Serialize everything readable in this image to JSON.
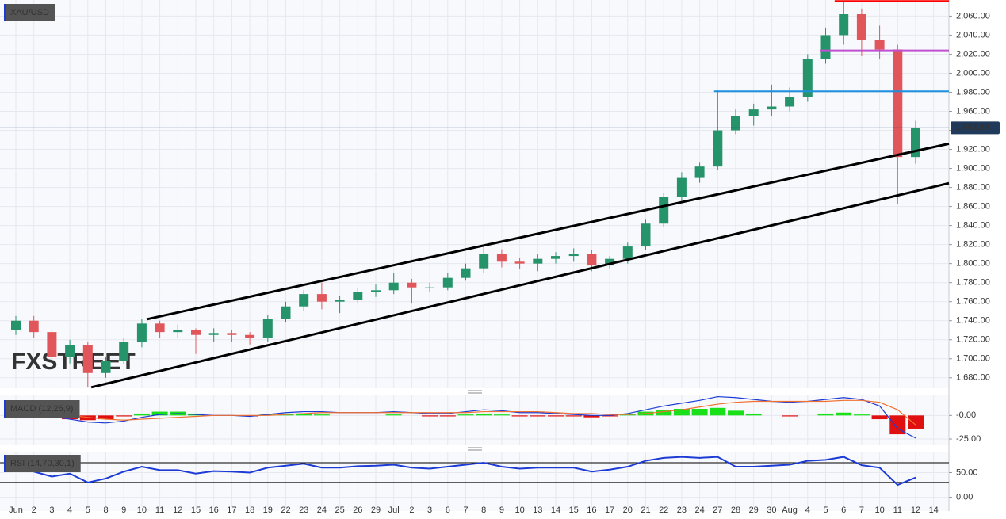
{
  "chart_data": [
    {
      "type": "candlestick",
      "symbol": "XAU/USD",
      "watermark": "FXSTREET",
      "categories": [
        "Jun",
        "2",
        "3",
        "4",
        "5",
        "8",
        "9",
        "10",
        "11",
        "12",
        "15",
        "16",
        "17",
        "18",
        "19",
        "22",
        "23",
        "24",
        "25",
        "26",
        "29",
        "Jul",
        "2",
        "3",
        "6",
        "7",
        "8",
        "9",
        "10",
        "13",
        "14",
        "15",
        "16",
        "17",
        "20",
        "21",
        "22",
        "23",
        "24",
        "27",
        "28",
        "29",
        "30",
        "Aug",
        "4",
        "5",
        "6",
        "7",
        "10",
        "11",
        "12",
        "14"
      ],
      "open": [
        1730,
        1740,
        1728,
        1702,
        1714,
        1685,
        1698,
        1718,
        1737,
        1728,
        1730,
        1725,
        1727,
        1725,
        1722,
        1742,
        1755,
        1768,
        1760,
        1762,
        1770,
        1772,
        1780,
        1775,
        1775,
        1785,
        1795,
        1810,
        1802,
        1800,
        1805,
        1808,
        1810,
        1798,
        1805,
        1818,
        1842,
        1870,
        1890,
        1902,
        1940,
        1955,
        1962,
        1965,
        1975,
        2015,
        2040,
        2062,
        2035,
        2025,
        1912,
        null
      ],
      "high": [
        1745,
        1745,
        1730,
        1720,
        1718,
        1702,
        1722,
        1742,
        1740,
        1736,
        1732,
        1732,
        1730,
        1728,
        1746,
        1760,
        1772,
        1780,
        1766,
        1774,
        1778,
        1790,
        1784,
        1780,
        1790,
        1800,
        1820,
        1815,
        1806,
        1810,
        1812,
        1816,
        1814,
        1808,
        1822,
        1846,
        1874,
        1896,
        1906,
        1982,
        1962,
        1968,
        1988,
        1985,
        2020,
        2048,
        2076,
        2068,
        2050,
        2030,
        1950,
        null
      ],
      "low": [
        1725,
        1722,
        1695,
        1695,
        1670,
        1680,
        1694,
        1712,
        1722,
        1722,
        1705,
        1718,
        1718,
        1715,
        1718,
        1738,
        1750,
        1752,
        1748,
        1758,
        1765,
        1768,
        1758,
        1770,
        1772,
        1782,
        1790,
        1796,
        1794,
        1792,
        1800,
        1802,
        1792,
        1795,
        1800,
        1814,
        1838,
        1865,
        1885,
        1898,
        1936,
        1945,
        1955,
        1960,
        1970,
        2010,
        2030,
        2018,
        2015,
        1863,
        1905,
        null
      ],
      "close": [
        1740,
        1728,
        1702,
        1714,
        1685,
        1698,
        1718,
        1737,
        1728,
        1730,
        1725,
        1727,
        1725,
        1722,
        1742,
        1755,
        1768,
        1760,
        1762,
        1770,
        1772,
        1780,
        1775,
        1775,
        1785,
        1795,
        1810,
        1802,
        1800,
        1805,
        1808,
        1810,
        1798,
        1805,
        1818,
        1842,
        1870,
        1890,
        1902,
        1940,
        1955,
        1962,
        1965,
        1975,
        2015,
        2040,
        2062,
        2035,
        2025,
        1912,
        1942.68,
        null
      ],
      "up_color": "#26946a",
      "down_color": "#e0565a",
      "ylim": [
        1669,
        2077
      ],
      "yticks": [
        {
          "value": 1680,
          "label": "1,680.00"
        },
        {
          "value": 1700,
          "label": "1,700.00"
        },
        {
          "value": 1720,
          "label": "1,720.00"
        },
        {
          "value": 1740,
          "label": "1,740.00"
        },
        {
          "value": 1760,
          "label": "1,760.00"
        },
        {
          "value": 1780,
          "label": "1,780.00"
        },
        {
          "value": 1800,
          "label": "1,800.00"
        },
        {
          "value": 1820,
          "label": "1,820.00"
        },
        {
          "value": 1840,
          "label": "1,840.00"
        },
        {
          "value": 1860,
          "label": "1,860.00"
        },
        {
          "value": 1880,
          "label": "1,880.00"
        },
        {
          "value": 1900,
          "label": "1,900.00"
        },
        {
          "value": 1920,
          "label": "1,920.00"
        },
        {
          "value": 1940,
          "label": "1,940.00"
        },
        {
          "value": 1960,
          "label": "1,960.00"
        },
        {
          "value": 1980,
          "label": "1,980.00"
        },
        {
          "value": 2000,
          "label": "2,000.00"
        },
        {
          "value": 2020,
          "label": "2,020.00"
        },
        {
          "value": 2040,
          "label": "2,040.00"
        },
        {
          "value": 2060,
          "label": "2,060.00"
        }
      ],
      "grid": true,
      "last_price": {
        "value": 1942.68,
        "label": "1,942.68"
      },
      "hlines": [
        {
          "value": 2076,
          "x_start": 45.5,
          "color": "#ff0000"
        },
        {
          "value": 2024,
          "x_start": 44.7,
          "color": "#c050d0"
        },
        {
          "value": 1981,
          "x_start": 38.8,
          "color": "#1e90e0"
        }
      ],
      "trendlines": [
        {
          "x": [
            7.27,
            51.85
          ],
          "y": [
            1741.5,
            1926
          ]
        },
        {
          "x": [
            4.19,
            51.85
          ],
          "y": [
            1670,
            1884.5
          ]
        }
      ]
    },
    {
      "type": "macd",
      "title": "MACD (12,26,9)",
      "series": [
        {
          "name": "MACD",
          "color": "#1c3bd4",
          "values": [
            4,
            2,
            -1,
            -4,
            -7,
            -8,
            -6,
            -2,
            1,
            2,
            1,
            0,
            0,
            -1,
            1,
            3,
            4,
            4,
            3,
            3,
            3,
            4,
            3,
            2,
            2,
            4,
            6,
            5,
            3,
            3,
            2,
            1,
            0,
            0,
            2,
            6,
            10,
            13,
            16,
            20,
            19,
            17,
            15,
            14,
            15,
            17,
            19,
            17,
            10,
            -14,
            -24,
            null
          ]
        },
        {
          "name": "Signal",
          "color": "#f07030",
          "values": [
            3,
            3,
            2,
            0,
            -2,
            -4,
            -5,
            -4,
            -3,
            -2,
            -1,
            0,
            0,
            0,
            0,
            1,
            2,
            3,
            3,
            3,
            3,
            3,
            3,
            3,
            3,
            3,
            4,
            4,
            4,
            4,
            3,
            2,
            2,
            1,
            1,
            2,
            4,
            6,
            9,
            12,
            14,
            15,
            15,
            15,
            15,
            15,
            16,
            16,
            14,
            6,
            -10,
            null
          ]
        }
      ],
      "histogram": [
        1,
        -1,
        -3,
        -4,
        -5,
        -4,
        -1,
        2,
        4,
        4,
        2,
        0,
        0,
        -1,
        1,
        2,
        2,
        1,
        0,
        0,
        0,
        1,
        0,
        -1,
        -1,
        1,
        2,
        1,
        -1,
        -1,
        -1,
        -1,
        -2,
        -1,
        1,
        4,
        6,
        7,
        7,
        8,
        5,
        2,
        0,
        -1,
        0,
        2,
        3,
        1,
        -4,
        -20,
        -14,
        null
      ],
      "pos_color": "#19e019",
      "neg_color": "#e01010",
      "ylim": [
        -31.7,
        21.3
      ],
      "yticks": [
        {
          "value": 0,
          "label": "-0.00"
        },
        {
          "value": -25,
          "label": "-25.00"
        }
      ]
    },
    {
      "type": "rsi",
      "title": "RSI (14,70,30,1)",
      "color": "#1c3bd4",
      "values": [
        58,
        52,
        42,
        48,
        30,
        38,
        52,
        62,
        55,
        55,
        48,
        53,
        52,
        50,
        60,
        64,
        68,
        60,
        60,
        63,
        64,
        66,
        60,
        58,
        62,
        66,
        70,
        62,
        58,
        60,
        60,
        60,
        52,
        56,
        62,
        74,
        80,
        82,
        80,
        82,
        62,
        62,
        64,
        66,
        74,
        76,
        82,
        65,
        60,
        25,
        40,
        null
      ],
      "levels": [
        70,
        30
      ],
      "ylim": [
        -20,
        91
      ],
      "yticks": [
        {
          "value": 50,
          "label": "50.00"
        },
        {
          "value": 0,
          "label": "0.00"
        }
      ]
    }
  ]
}
